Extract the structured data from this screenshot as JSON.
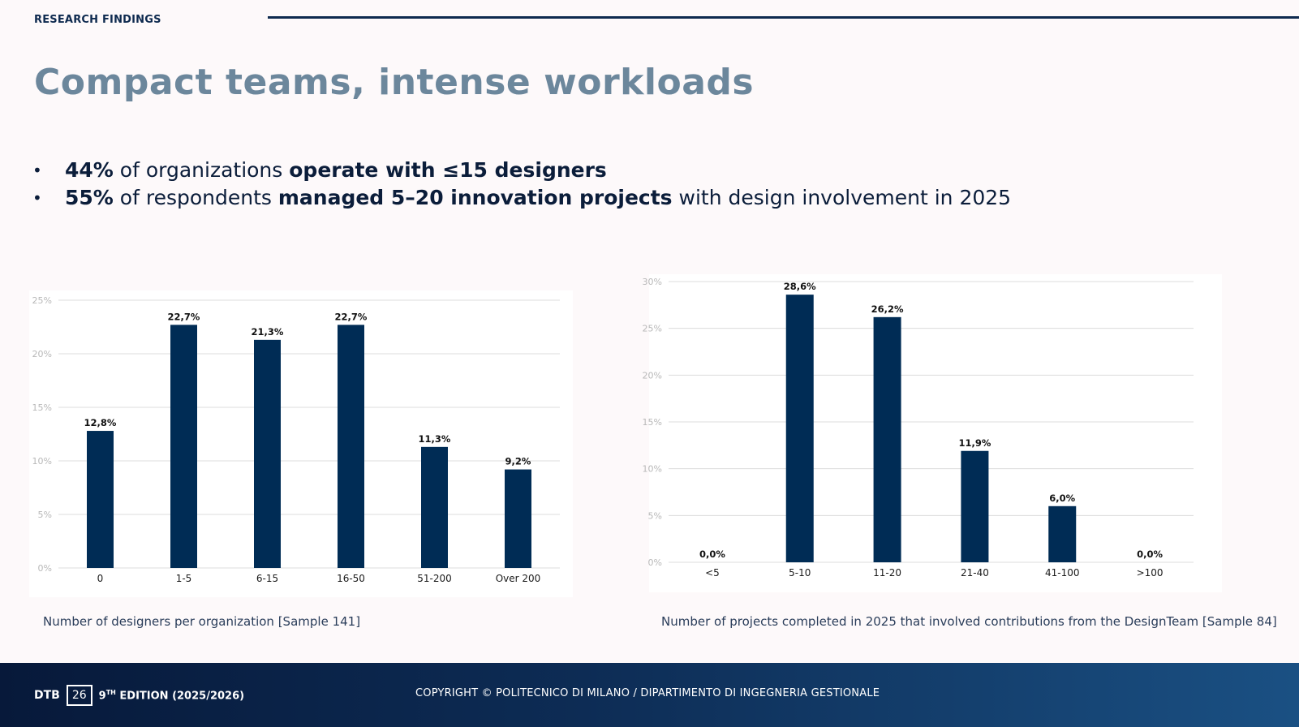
{
  "header": {
    "section_label": "RESEARCH FINDINGS",
    "title": "Compact teams, intense workloads"
  },
  "bullets": [
    {
      "b1": "44%",
      "t1": " of organizations ",
      "b2": "operate with ≤15 designers",
      "t2": ""
    },
    {
      "b1": "55%",
      "t1": " of respondents ",
      "b2": "managed 5–20 innovation projects",
      "t2": " with design involvement in 2025"
    }
  ],
  "chart_data": [
    {
      "type": "bar",
      "categories": [
        "0",
        "1-5",
        "6-15",
        "16-50",
        "51-200",
        "Over 200"
      ],
      "values": [
        12.8,
        22.7,
        21.3,
        22.7,
        11.3,
        9.2
      ],
      "value_labels": [
        "12,8%",
        "22,7%",
        "21,3%",
        "22,7%",
        "11,3%",
        "9,2%"
      ],
      "ylim": [
        0,
        25
      ],
      "yticks": [
        "0%",
        "5%",
        "10%",
        "15%",
        "20%",
        "25%"
      ],
      "grid": true,
      "bar_color": "#002c55",
      "caption": "Number of designers per organization [Sample 141]"
    },
    {
      "type": "bar",
      "categories": [
        "<5",
        "5-10",
        "11-20",
        "21-40",
        "41-100",
        ">100"
      ],
      "values": [
        0.0,
        28.6,
        26.2,
        11.9,
        6.0,
        0.0
      ],
      "value_labels": [
        "0,0%",
        "28,6%",
        "26,2%",
        "11,9%",
        "6,0%",
        "0,0%"
      ],
      "ylim": [
        0,
        30
      ],
      "yticks": [
        "0%",
        "5%",
        "10%",
        "15%",
        "20%",
        "25%",
        "30%"
      ],
      "grid": true,
      "bar_color": "#002c55",
      "caption": "Number of projects completed in 2025 that involved contributions from the DesignTeam [Sample 84]"
    }
  ],
  "footer": {
    "brand": "DTB",
    "number": "26",
    "edition_sup": "TH",
    "edition_num": "9",
    "edition_text": " EDITION (2025/2026)",
    "copyright": "COPYRIGHT © POLITECNICO DI MILANO / DIPARTIMENTO DI INGEGNERIA GESTIONALE"
  }
}
